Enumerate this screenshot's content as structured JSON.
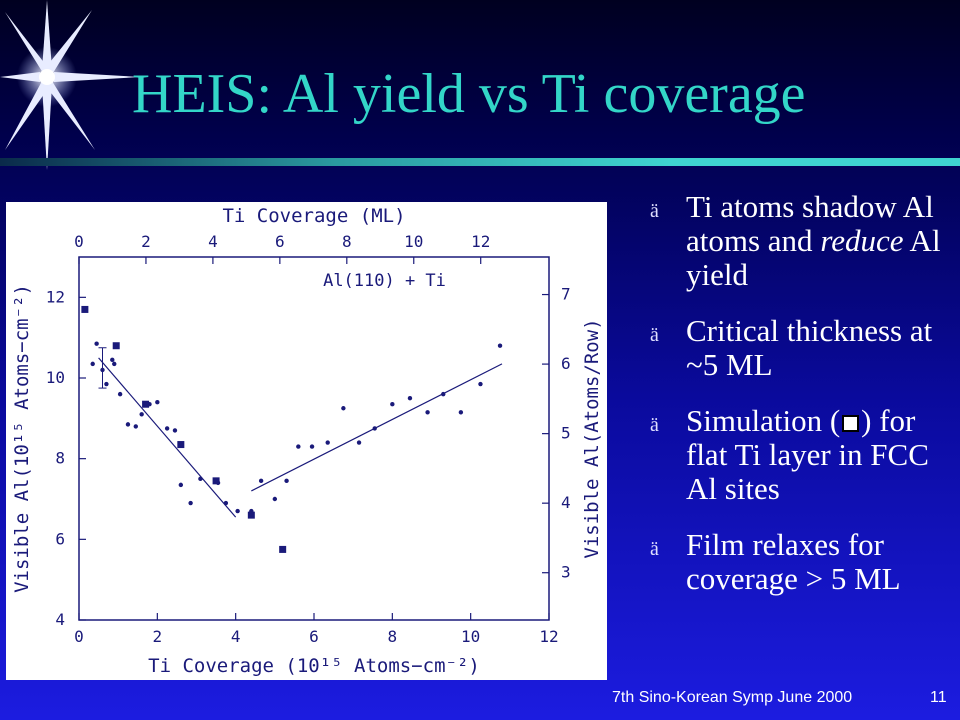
{
  "slide": {
    "title": "HEIS: Al yield vs Ti coverage",
    "footer_left": "7th Sino-Korean Symp June 2000",
    "footer_page": "11",
    "colors": {
      "title": "#33d6c8",
      "bullet_text": "#ffffff",
      "plot_ink": "#1a1a7a"
    }
  },
  "bullets": [
    {
      "mark": "ä",
      "html_parts": [
        "Ti atoms shadow Al atoms and ",
        "reduce",
        " Al yield"
      ]
    },
    {
      "mark": "ä",
      "text": "Critical thickness at ~5 ML"
    },
    {
      "mark": "ä",
      "pre": "Simulation (",
      "post": ") for flat Ti layer in FCC Al sites"
    },
    {
      "mark": "ä",
      "text": "Film relaxes for coverage > 5 ML"
    }
  ],
  "chart_data": {
    "type": "scatter",
    "annotation": "Al(110) + Ti",
    "xlabel_bottom": "Ti Coverage (10¹⁵ Atoms−cm⁻²)",
    "xlabel_top": "Ti Coverage (ML)",
    "ylabel_left": "Visible Al(10¹⁵ Atoms−cm⁻²)",
    "ylabel_right": "Visible Al(Atoms/Row)",
    "xlim": [
      0,
      12
    ],
    "ylim": [
      4,
      13
    ],
    "x_ticks": [
      0,
      2,
      4,
      6,
      8,
      10,
      12
    ],
    "y_ticks": [
      4,
      6,
      8,
      10,
      12
    ],
    "top_ticks_ml": [
      0,
      2,
      4,
      6,
      8,
      10,
      12
    ],
    "right_ticks_row": [
      3,
      4,
      5,
      6,
      7
    ],
    "ml_per_unit": 1.17,
    "row_per_unit": 0.58,
    "grid": false,
    "series": [
      {
        "marker": "dot",
        "points": [
          [
            0.35,
            10.35
          ],
          [
            0.45,
            10.85
          ],
          [
            0.6,
            10.2
          ],
          [
            0.7,
            9.85
          ],
          [
            0.85,
            10.45
          ],
          [
            0.9,
            10.35
          ],
          [
            1.05,
            9.6
          ],
          [
            1.25,
            8.85
          ],
          [
            1.45,
            8.8
          ],
          [
            1.6,
            9.1
          ],
          [
            1.8,
            9.35
          ],
          [
            2.0,
            9.4
          ],
          [
            2.25,
            8.75
          ],
          [
            2.45,
            8.7
          ],
          [
            2.6,
            7.35
          ],
          [
            2.85,
            6.9
          ],
          [
            3.1,
            7.5
          ],
          [
            3.55,
            7.4
          ],
          [
            3.75,
            6.9
          ],
          [
            4.05,
            6.7
          ],
          [
            4.4,
            6.7
          ],
          [
            4.65,
            7.45
          ],
          [
            5.0,
            7.0
          ],
          [
            5.3,
            7.45
          ],
          [
            5.6,
            8.3
          ],
          [
            5.95,
            8.3
          ],
          [
            6.35,
            8.4
          ],
          [
            6.75,
            9.25
          ],
          [
            7.15,
            8.4
          ],
          [
            7.55,
            8.75
          ],
          [
            8.0,
            9.35
          ],
          [
            8.45,
            9.5
          ],
          [
            8.9,
            9.15
          ],
          [
            9.3,
            9.6
          ],
          [
            9.75,
            9.15
          ],
          [
            10.25,
            9.85
          ],
          [
            10.75,
            10.8
          ]
        ]
      },
      {
        "marker": "square",
        "points": [
          [
            0.15,
            11.7
          ],
          [
            0.95,
            10.8
          ],
          [
            1.7,
            9.35
          ],
          [
            2.6,
            8.35
          ],
          [
            3.5,
            7.45
          ],
          [
            4.4,
            6.6
          ],
          [
            5.2,
            5.75
          ]
        ]
      }
    ],
    "fit_lines": [
      {
        "from": [
          0.5,
          10.5
        ],
        "to": [
          4.0,
          6.55
        ]
      },
      {
        "from": [
          4.4,
          7.2
        ],
        "to": [
          10.8,
          10.35
        ]
      }
    ],
    "error_bar": {
      "x": 0.6,
      "y": 10.15,
      "low": 9.75,
      "high": 10.75
    }
  }
}
